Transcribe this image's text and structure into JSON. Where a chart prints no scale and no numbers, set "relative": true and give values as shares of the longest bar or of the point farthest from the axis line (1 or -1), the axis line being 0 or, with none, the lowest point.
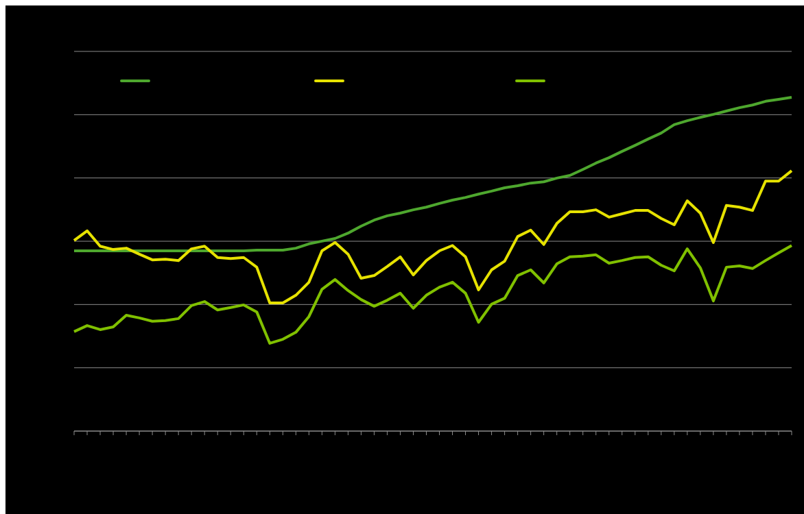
{
  "chart_data": {
    "type": "line",
    "relative": true,
    "grid": "y",
    "marker": "none",
    "line_style": "solid",
    "categories": [
      null,
      null,
      null,
      null,
      null,
      null,
      null,
      null,
      null,
      null,
      null,
      null,
      null,
      null,
      null,
      null,
      null,
      null,
      null,
      null,
      null,
      null,
      null,
      null,
      null,
      null,
      null,
      null,
      null,
      null,
      null,
      null,
      null,
      null,
      null,
      null,
      null,
      null,
      null,
      null,
      null,
      null,
      null,
      null,
      null,
      null,
      null,
      null,
      null,
      null,
      null,
      null,
      null,
      null,
      null,
      null
    ],
    "series": [
      {
        "color": "#4ea72e",
        "values": [
          0.54,
          0.54,
          0.54,
          0.54,
          0.54,
          0.54,
          0.54,
          0.54,
          0.54,
          0.54,
          0.54,
          0.54,
          0.54,
          0.54,
          0.542,
          0.542,
          0.542,
          0.548,
          0.561,
          0.569,
          0.577,
          0.593,
          0.614,
          0.632,
          0.645,
          0.653,
          0.663,
          0.671,
          0.682,
          0.692,
          0.7,
          0.71,
          0.719,
          0.729,
          0.735,
          0.743,
          0.747,
          0.758,
          0.766,
          0.784,
          0.803,
          0.819,
          0.838,
          0.856,
          0.875,
          0.893,
          0.918,
          0.93,
          0.94,
          0.949,
          0.959,
          0.969,
          0.977,
          0.988,
          0.994,
          1
        ]
      },
      {
        "color": "#e6e200",
        "values": [
          0.571,
          0.6,
          0.554,
          0.544,
          0.548,
          0.53,
          0.513,
          0.515,
          0.511,
          0.546,
          0.554,
          0.52,
          0.517,
          0.52,
          0.491,
          0.384,
          0.384,
          0.407,
          0.446,
          0.54,
          0.565,
          0.53,
          0.458,
          0.466,
          0.493,
          0.522,
          0.468,
          0.511,
          0.54,
          0.556,
          0.522,
          0.423,
          0.483,
          0.509,
          0.583,
          0.602,
          0.559,
          0.622,
          0.657,
          0.657,
          0.663,
          0.641,
          0.651,
          0.661,
          0.661,
          0.637,
          0.618,
          0.69,
          0.653,
          0.565,
          0.676,
          0.671,
          0.661,
          0.749,
          0.749,
          0.78
        ]
      },
      {
        "color": "#80c000",
        "values": [
          0.298,
          0.316,
          0.304,
          0.312,
          0.347,
          0.339,
          0.329,
          0.331,
          0.337,
          0.376,
          0.388,
          0.363,
          0.37,
          0.378,
          0.357,
          0.263,
          0.275,
          0.296,
          0.343,
          0.425,
          0.454,
          0.421,
          0.394,
          0.374,
          0.392,
          0.413,
          0.368,
          0.407,
          0.431,
          0.446,
          0.413,
          0.326,
          0.38,
          0.398,
          0.466,
          0.483,
          0.444,
          0.501,
          0.522,
          0.524,
          0.528,
          0.503,
          0.511,
          0.52,
          0.522,
          0.497,
          0.48,
          0.546,
          0.489,
          0.39,
          0.491,
          0.495,
          0.487,
          0.511,
          0.534,
          0.556
        ]
      }
    ]
  }
}
